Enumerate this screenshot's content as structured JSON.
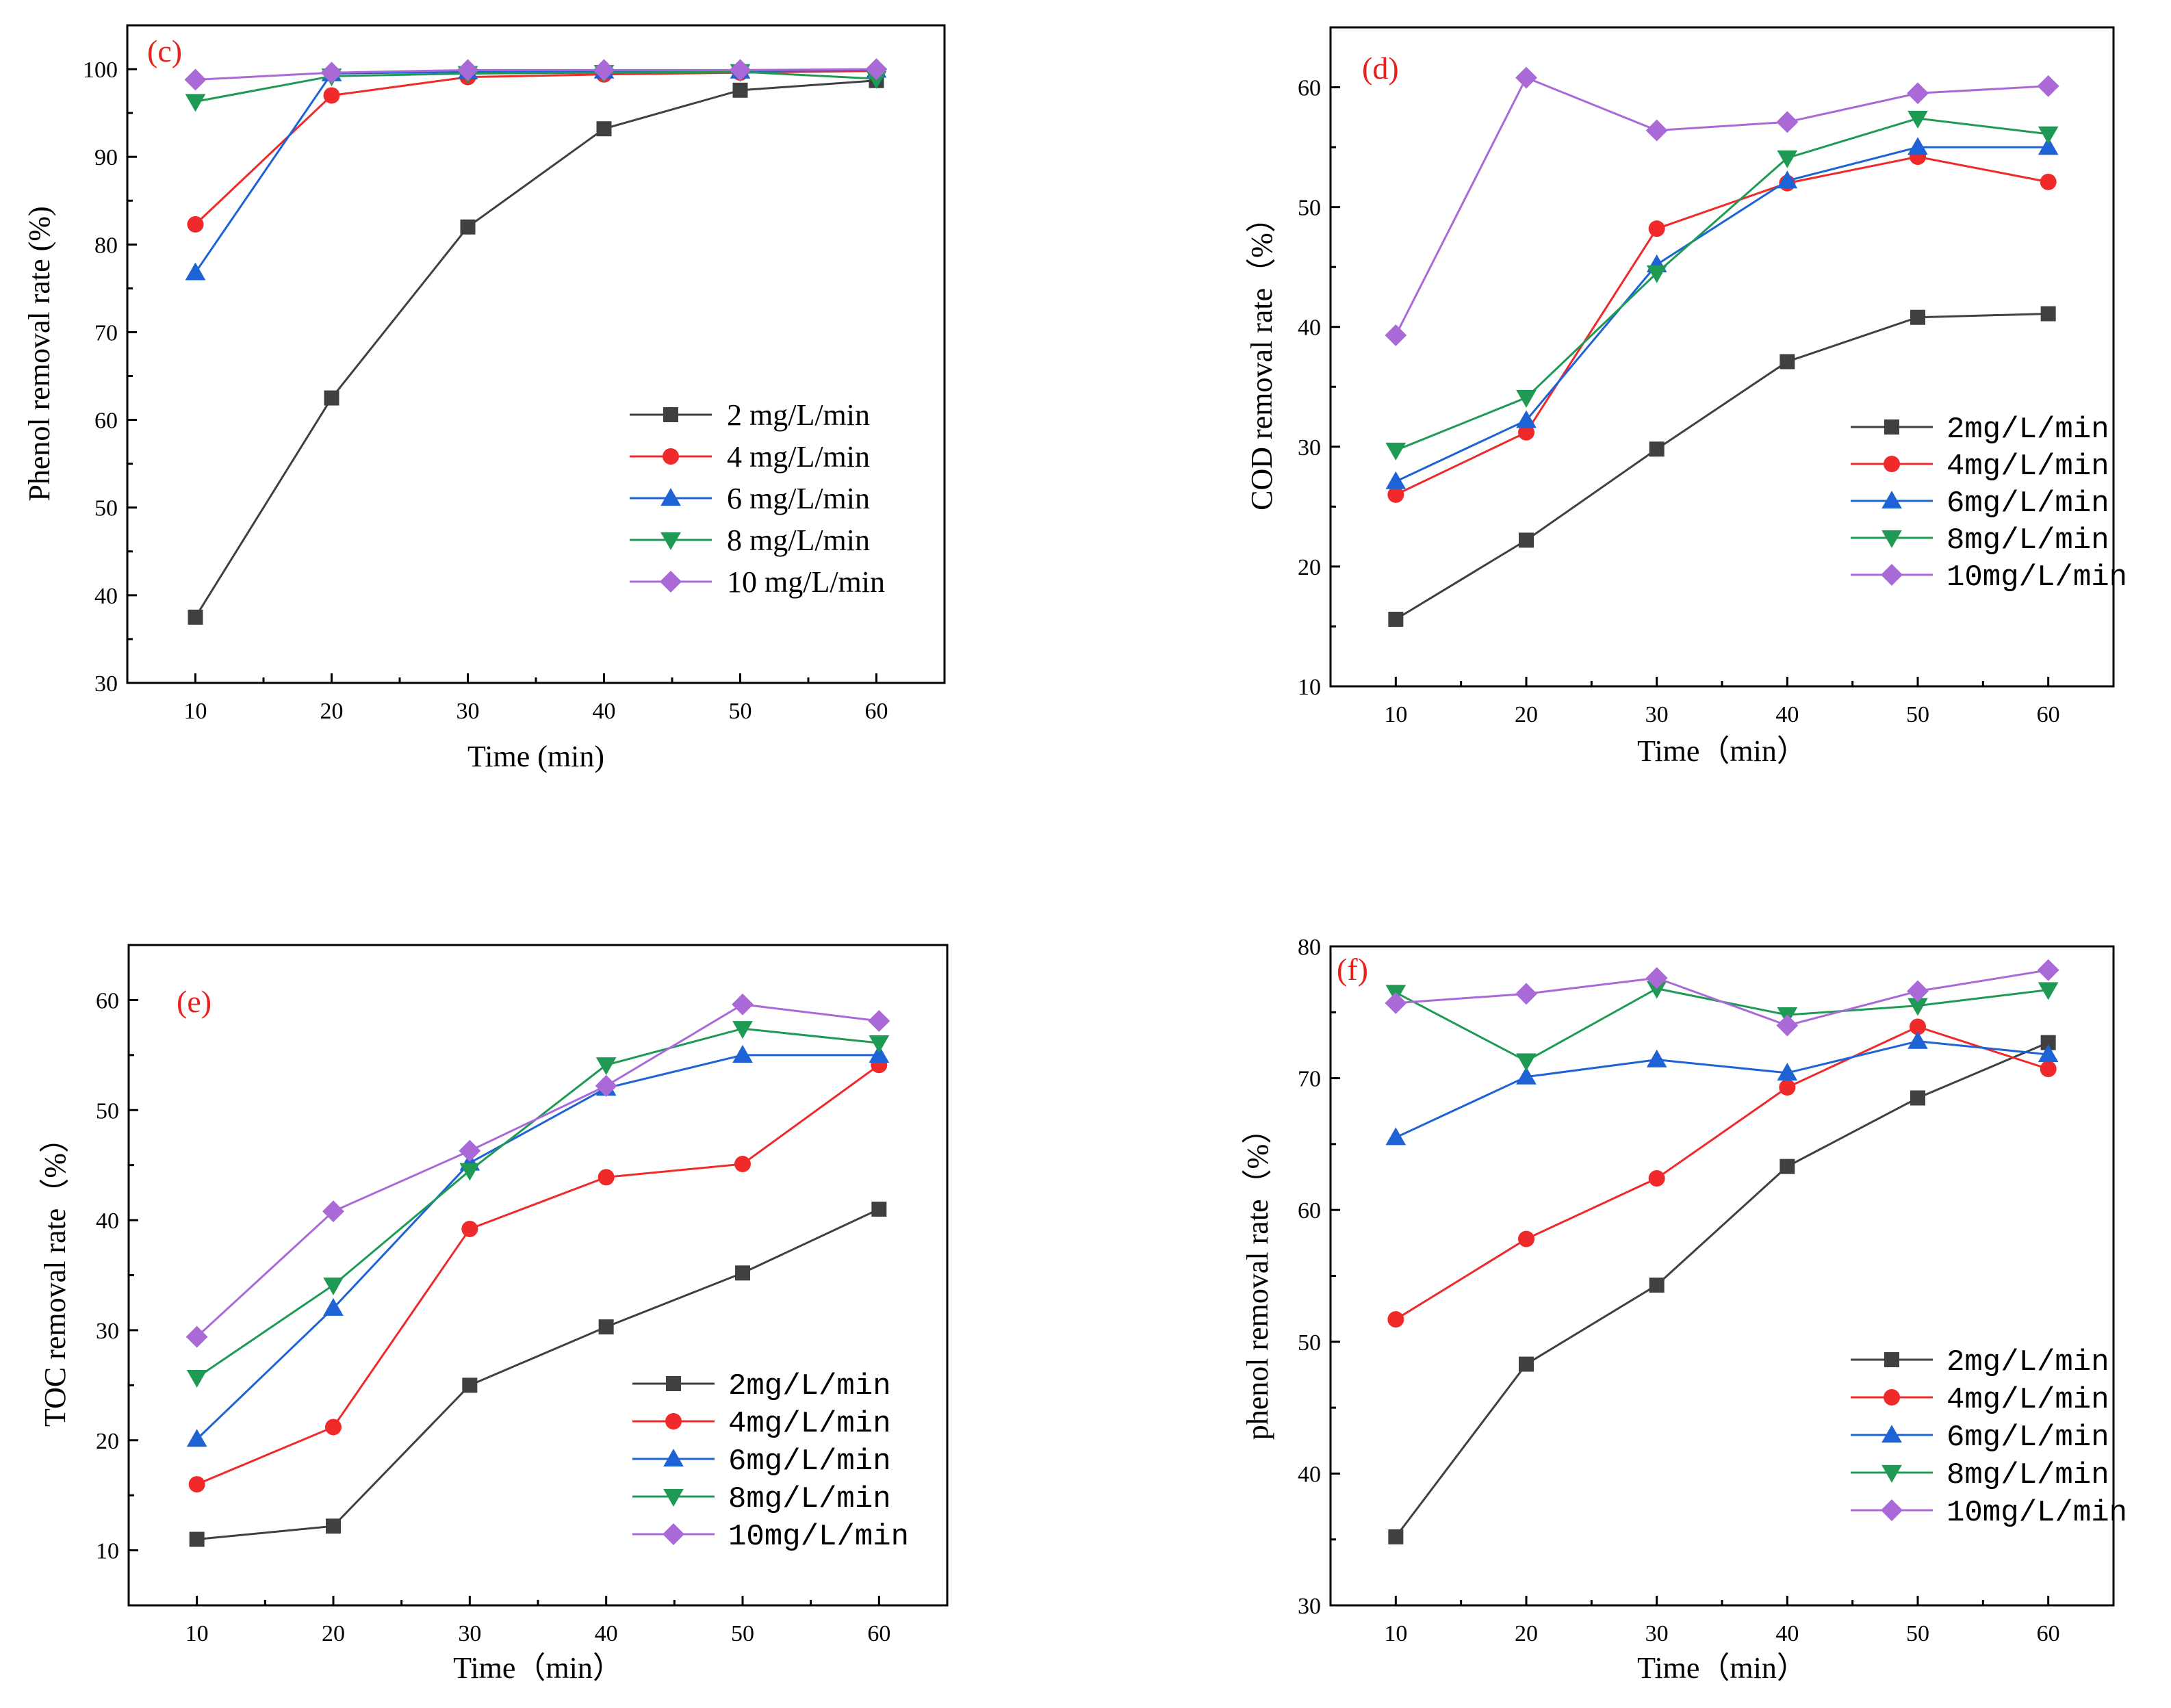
{
  "colors": {
    "2": "#404040",
    "4": "#f02a2a",
    "6": "#1e63d6",
    "8": "#1f9a55",
    "10": "#a96ad8",
    "panel_label": "#e8211c"
  },
  "chart_data": [
    {
      "type": "line",
      "panel_label": "(c)",
      "xlabel": "Time (min)",
      "ylabel": "Phenol removal rate (%)",
      "x": [
        10,
        20,
        30,
        40,
        50,
        60
      ],
      "xlim": [
        5,
        65
      ],
      "ylim": [
        30,
        105
      ],
      "yticks": [
        30,
        40,
        50,
        60,
        70,
        80,
        90,
        100
      ],
      "xticks": [
        10,
        20,
        30,
        40,
        50,
        60
      ],
      "legend_position": "bottom-right",
      "series": [
        {
          "name": "2 mg/L/min",
          "key": "2",
          "marker": "square",
          "values": [
            37.5,
            62.5,
            82,
            93.2,
            97.6,
            98.7
          ]
        },
        {
          "name": "4 mg/L/min",
          "key": "4",
          "marker": "circle",
          "values": [
            82.3,
            97,
            99.1,
            99.4,
            99.6,
            99.8
          ]
        },
        {
          "name": "6 mg/L/min",
          "key": "6",
          "marker": "triangle-up",
          "values": [
            76.8,
            99.5,
            99.7,
            99.8,
            99.8,
            99.9
          ]
        },
        {
          "name": "8 mg/L/min",
          "key": "8",
          "marker": "triangle-down",
          "values": [
            96.3,
            99.2,
            99.5,
            99.6,
            99.7,
            98.9
          ]
        },
        {
          "name": "10 mg/L/min",
          "key": "10",
          "marker": "diamond",
          "values": [
            98.8,
            99.6,
            99.9,
            99.9,
            99.9,
            100
          ]
        }
      ]
    },
    {
      "type": "line",
      "panel_label": "(d)",
      "xlabel": "Time（min）",
      "ylabel": "COD removal rate（%）",
      "x": [
        10,
        20,
        30,
        40,
        50,
        60
      ],
      "xlim": [
        5,
        65
      ],
      "ylim": [
        10,
        65
      ],
      "yticks": [
        10,
        20,
        30,
        40,
        50,
        60
      ],
      "xticks": [
        10,
        20,
        30,
        40,
        50,
        60
      ],
      "legend_position": "bottom-right",
      "series": [
        {
          "name": "2mg/L/min",
          "key": "2",
          "marker": "square",
          "values": [
            15.6,
            22.2,
            29.8,
            37.1,
            40.8,
            41.1
          ]
        },
        {
          "name": "4mg/L/min",
          "key": "4",
          "marker": "circle",
          "values": [
            26,
            31.2,
            48.2,
            52,
            54.2,
            52.1
          ]
        },
        {
          "name": "6mg/L/min",
          "key": "6",
          "marker": "triangle-up",
          "values": [
            27.1,
            32.2,
            45.2,
            52.2,
            55,
            55
          ]
        },
        {
          "name": "8mg/L/min",
          "key": "8",
          "marker": "triangle-down",
          "values": [
            29.7,
            34.1,
            44.5,
            54.1,
            57.4,
            56.1
          ]
        },
        {
          "name": "10mg/L/min",
          "key": "10",
          "marker": "diamond",
          "values": [
            39.3,
            60.8,
            56.4,
            57.1,
            59.5,
            60.1
          ]
        }
      ]
    },
    {
      "type": "line",
      "panel_label": "(e)",
      "xlabel": "Time（min）",
      "ylabel": "TOC removal rate（%）",
      "x": [
        10,
        20,
        30,
        40,
        50,
        60
      ],
      "xlim": [
        5,
        65
      ],
      "ylim": [
        5,
        65
      ],
      "yticks": [
        10,
        20,
        30,
        40,
        50,
        60
      ],
      "xticks": [
        10,
        20,
        30,
        40,
        50,
        60
      ],
      "legend_position": "bottom-right",
      "series": [
        {
          "name": "2mg/L/min",
          "key": "2",
          "marker": "square",
          "values": [
            11,
            12.2,
            25,
            30.3,
            35.2,
            41
          ]
        },
        {
          "name": "4mg/L/min",
          "key": "4",
          "marker": "circle",
          "values": [
            16,
            21.2,
            39.2,
            43.9,
            45.1,
            54.1
          ]
        },
        {
          "name": "6mg/L/min",
          "key": "6",
          "marker": "triangle-up",
          "values": [
            20.1,
            32,
            45.2,
            52,
            55,
            55
          ]
        },
        {
          "name": "8mg/L/min",
          "key": "8",
          "marker": "triangle-down",
          "values": [
            25.7,
            34.1,
            44.5,
            54.1,
            57.4,
            56.1
          ]
        },
        {
          "name": "10mg/L/min",
          "key": "10",
          "marker": "diamond",
          "values": [
            29.4,
            40.8,
            46.3,
            52.2,
            59.6,
            58.1
          ]
        }
      ]
    },
    {
      "type": "line",
      "panel_label": "(f)",
      "xlabel": "Time（min）",
      "ylabel": "phenol removal rate（%）",
      "x": [
        10,
        20,
        30,
        40,
        50,
        60
      ],
      "xlim": [
        5,
        65
      ],
      "ylim": [
        30,
        80
      ],
      "yticks": [
        30,
        40,
        50,
        60,
        70,
        80
      ],
      "xticks": [
        10,
        20,
        30,
        40,
        50,
        60
      ],
      "legend_position": "bottom-right",
      "series": [
        {
          "name": "2mg/L/min",
          "key": "2",
          "marker": "square",
          "values": [
            35.2,
            48.3,
            54.3,
            63.3,
            68.5,
            72.7
          ]
        },
        {
          "name": "4mg/L/min",
          "key": "4",
          "marker": "circle",
          "values": [
            51.7,
            57.8,
            62.4,
            69.3,
            73.9,
            70.7
          ]
        },
        {
          "name": "6mg/L/min",
          "key": "6",
          "marker": "triangle-up",
          "values": [
            65.5,
            70.1,
            71.4,
            70.4,
            72.8,
            71.8
          ]
        },
        {
          "name": "8mg/L/min",
          "key": "8",
          "marker": "triangle-down",
          "values": [
            76.5,
            71.3,
            76.8,
            74.8,
            75.5,
            76.7
          ]
        },
        {
          "name": "10mg/L/min",
          "key": "10",
          "marker": "diamond",
          "values": [
            75.7,
            76.4,
            77.6,
            74,
            76.6,
            78.2
          ]
        }
      ]
    }
  ]
}
